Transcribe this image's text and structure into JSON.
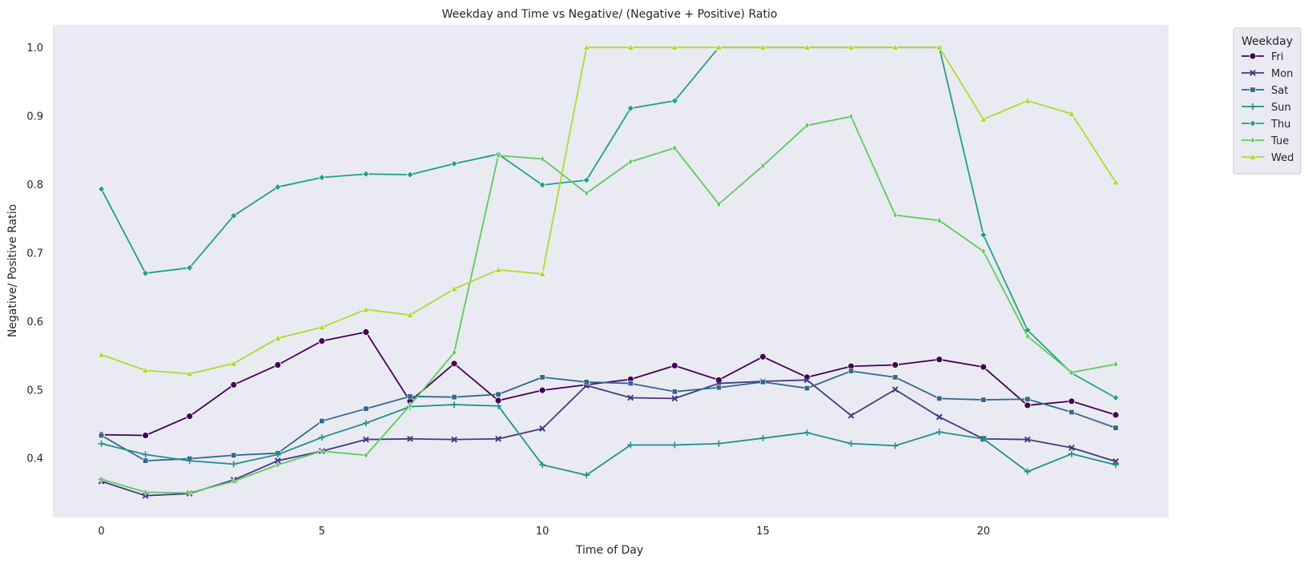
{
  "chart_data": {
    "type": "line",
    "title": "Weekday and Time vs Negative/ (Negative + Positive) Ratio",
    "xlabel": "Time of Day",
    "ylabel": "Negative/ Positive Ratio",
    "x": [
      0,
      1,
      2,
      3,
      4,
      5,
      6,
      7,
      8,
      9,
      10,
      11,
      12,
      13,
      14,
      15,
      16,
      17,
      18,
      19,
      20,
      21,
      22,
      23
    ],
    "xlim": [
      -1.1,
      24.2
    ],
    "ylim": [
      0.313,
      1.033
    ],
    "x_ticks": [
      0,
      5,
      10,
      15,
      20
    ],
    "x_tick_labels": [
      "0",
      "5",
      "10",
      "15",
      "20"
    ],
    "y_ticks": [
      0.4,
      0.5,
      0.6,
      0.7,
      0.8,
      0.9,
      1.0
    ],
    "y_tick_labels": [
      "0.4",
      "0.5",
      "0.6",
      "0.7",
      "0.8",
      "0.9",
      "1.0"
    ],
    "grid": false,
    "legend": {
      "title": "Weekday",
      "placement": "outside-top-right"
    },
    "series": [
      {
        "name": "Fri",
        "color": "#440154",
        "marker": "circle",
        "values": [
          0.434,
          0.433,
          0.461,
          0.507,
          0.536,
          0.571,
          0.584,
          0.483,
          0.538,
          0.484,
          0.499,
          0.507,
          0.515,
          0.535,
          0.514,
          0.548,
          0.518,
          0.534,
          0.536,
          0.544,
          0.533,
          0.477,
          0.483,
          0.463
        ]
      },
      {
        "name": "Mon",
        "color": "#443983",
        "marker": "x",
        "values": [
          0.366,
          0.345,
          0.348,
          0.368,
          0.396,
          0.41,
          0.427,
          0.428,
          0.427,
          0.428,
          0.443,
          0.506,
          0.488,
          0.487,
          0.509,
          0.512,
          0.514,
          0.462,
          0.5,
          0.46,
          0.428,
          0.427,
          0.415,
          0.395
        ]
      },
      {
        "name": "Sat",
        "color": "#31688e",
        "marker": "square",
        "values": [
          0.433,
          0.396,
          0.399,
          0.404,
          0.407,
          0.454,
          0.472,
          0.49,
          0.489,
          0.493,
          0.518,
          0.511,
          0.509,
          0.497,
          0.503,
          0.511,
          0.502,
          0.527,
          0.518,
          0.487,
          0.485,
          0.486,
          0.467,
          0.444
        ]
      },
      {
        "name": "Sun",
        "color": "#21918c",
        "marker": "plus",
        "values": [
          0.421,
          0.405,
          0.396,
          0.391,
          0.405,
          0.43,
          0.451,
          0.475,
          0.478,
          0.476,
          0.39,
          0.375,
          0.419,
          0.419,
          0.421,
          0.429,
          0.437,
          0.421,
          0.418,
          0.438,
          0.428,
          0.38,
          0.406,
          0.39
        ]
      },
      {
        "name": "Thu",
        "color": "#1fa187",
        "marker": "diamond",
        "values": [
          0.793,
          0.67,
          0.678,
          0.754,
          0.796,
          0.81,
          0.815,
          0.814,
          0.83,
          0.844,
          0.799,
          0.806,
          0.911,
          0.922,
          1.0,
          1.0,
          1.0,
          1.0,
          1.0,
          1.0,
          0.726,
          0.587,
          0.524,
          0.488
        ]
      },
      {
        "name": "Tue",
        "color": "#5ec962",
        "marker": "thin-diamond",
        "values": [
          0.369,
          0.35,
          0.349,
          0.366,
          0.39,
          0.41,
          0.404,
          0.477,
          0.554,
          0.842,
          0.837,
          0.787,
          0.833,
          0.853,
          0.771,
          0.827,
          0.886,
          0.899,
          0.755,
          0.747,
          0.702,
          0.578,
          0.525,
          0.537
        ]
      },
      {
        "name": "Wed",
        "color": "#addc30",
        "marker": "triangle",
        "values": [
          0.551,
          0.528,
          0.523,
          0.538,
          0.575,
          0.591,
          0.617,
          0.609,
          0.647,
          0.675,
          0.669,
          1.0,
          1.0,
          1.0,
          1.0,
          1.0,
          1.0,
          1.0,
          1.0,
          1.0,
          0.895,
          0.922,
          0.903,
          0.803
        ]
      }
    ]
  }
}
